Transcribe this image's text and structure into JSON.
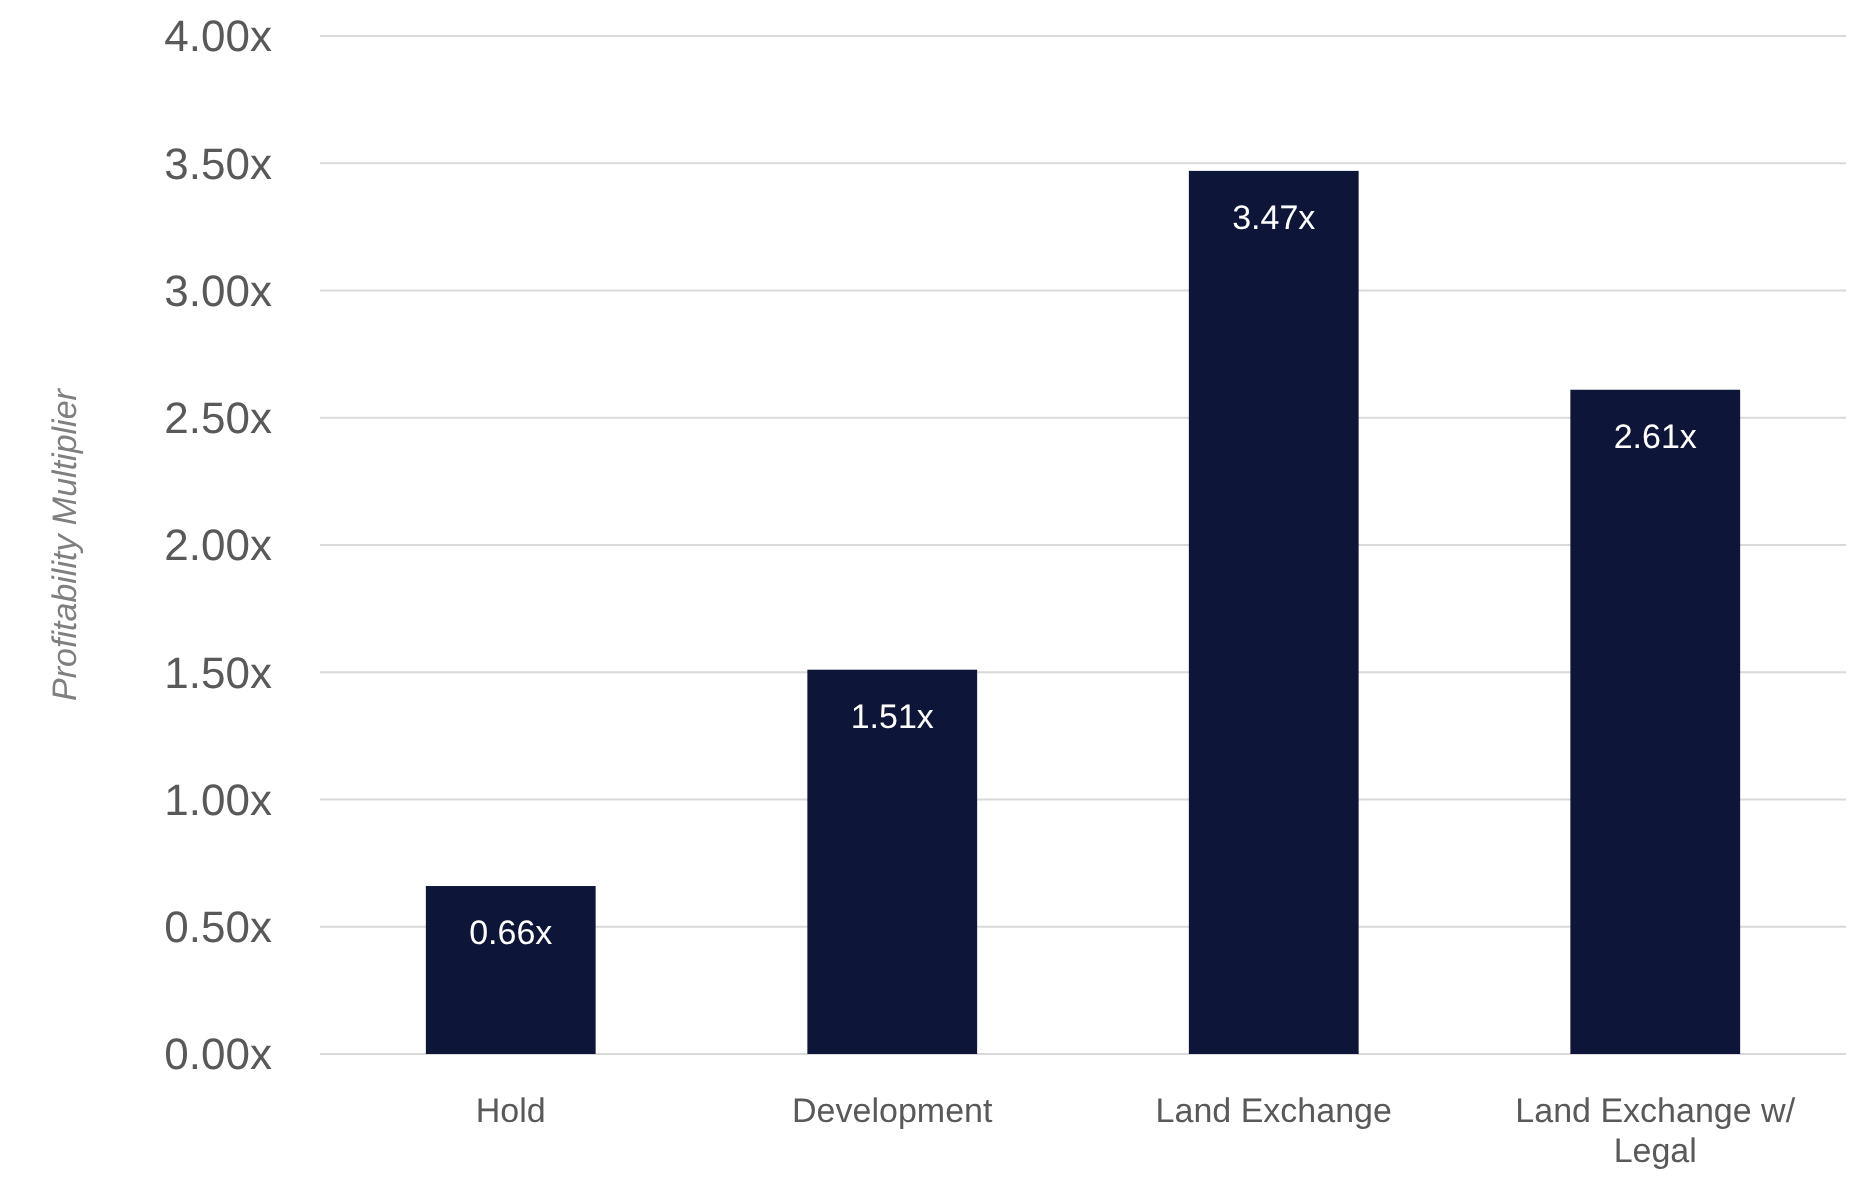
{
  "chart_data": {
    "type": "bar",
    "ylabel": "Profitability Multiplier",
    "categories": [
      "Hold",
      "Development",
      "Land Exchange",
      "Land Exchange w/ Legal"
    ],
    "values": [
      0.66,
      1.51,
      3.47,
      2.61
    ],
    "color": "#0d1538",
    "value_labels": [
      "0.66x",
      "1.51x",
      "3.47x",
      "2.61x"
    ],
    "ylim": [
      0,
      4
    ],
    "yticks": [
      {
        "value": 0,
        "label": "0.00x"
      },
      {
        "value": 0.5,
        "label": "0.50x"
      },
      {
        "value": 1,
        "label": "1.00x"
      },
      {
        "value": 1.5,
        "label": "1.50x"
      },
      {
        "value": 2,
        "label": "2.00x"
      },
      {
        "value": 2.5,
        "label": "2.50x"
      },
      {
        "value": 3,
        "label": "3.00x"
      },
      {
        "value": 3.5,
        "label": "3.50x"
      },
      {
        "value": 4,
        "label": "4.00x"
      }
    ],
    "grid": "y"
  }
}
